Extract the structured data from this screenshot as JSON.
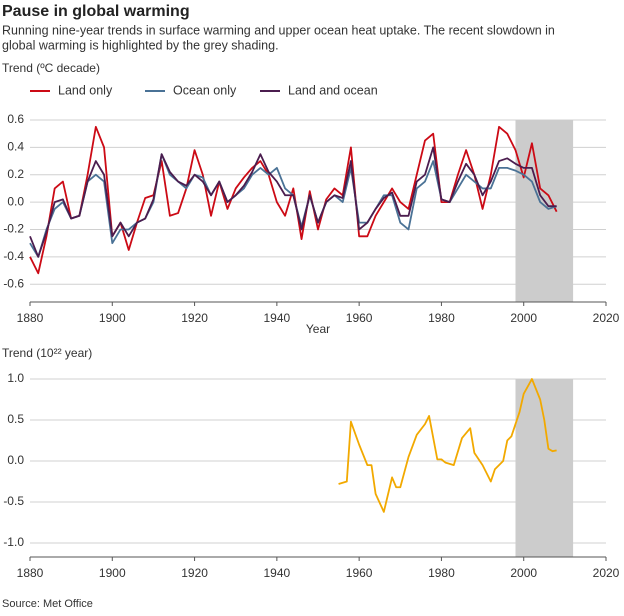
{
  "title": "Pause in global warming",
  "subtitle": [
    "Running nine-year trends in surface warming and upper ocean heat uptake. The recent slowdown in",
    "global warming is highlighted by the grey shading."
  ],
  "source": "Source: Met Office",
  "chart_data": [
    {
      "type": "line",
      "ylabel": "Trend (ºC decade)",
      "xlabel": "Year",
      "xlim": [
        1880,
        2020
      ],
      "xticks": [
        1880,
        1900,
        1920,
        1940,
        1960,
        1980,
        2000,
        2020
      ],
      "ylim": [
        -0.73,
        0.6
      ],
      "yticks": [
        0.6,
        0.4,
        0.2,
        {
          "value": 0,
          "label": "0.0"
        },
        -0.2,
        -0.4,
        -0.6
      ],
      "grid": true,
      "shading": [
        1998,
        2012
      ],
      "shading_color": "#cccccc",
      "x": [
        1880,
        1882,
        1884,
        1886,
        1888,
        1890,
        1892,
        1894,
        1896,
        1898,
        1900,
        1902,
        1904,
        1906,
        1908,
        1910,
        1912,
        1914,
        1916,
        1918,
        1920,
        1922,
        1924,
        1926,
        1928,
        1930,
        1932,
        1934,
        1936,
        1938,
        1940,
        1942,
        1944,
        1946,
        1948,
        1950,
        1952,
        1954,
        1956,
        1958,
        1960,
        1962,
        1964,
        1966,
        1968,
        1970,
        1972,
        1974,
        1976,
        1978,
        1980,
        1982,
        1984,
        1986,
        1988,
        1990,
        1992,
        1994,
        1996,
        1998,
        2000,
        2002,
        2004,
        2006,
        2008
      ],
      "series": [
        {
          "name": "Land only",
          "color": "#cc0a15",
          "values": [
            -0.4,
            -0.52,
            -0.25,
            0.1,
            0.15,
            -0.12,
            -0.1,
            0.2,
            0.55,
            0.4,
            -0.25,
            -0.15,
            -0.35,
            -0.15,
            0.03,
            0.05,
            0.3,
            -0.1,
            -0.08,
            0.1,
            0.38,
            0.2,
            -0.1,
            0.15,
            -0.05,
            0.1,
            0.18,
            0.25,
            0.3,
            0.2,
            0.0,
            -0.1,
            0.1,
            -0.27,
            0.08,
            -0.2,
            0.02,
            0.1,
            0.05,
            0.4,
            -0.25,
            -0.25,
            -0.1,
            0.0,
            0.1,
            0.0,
            -0.05,
            0.2,
            0.45,
            0.5,
            0.0,
            0.0,
            0.2,
            0.38,
            0.2,
            -0.05,
            0.2,
            0.55,
            0.5,
            0.38,
            0.18,
            0.43,
            0.1,
            0.05,
            -0.07
          ]
        },
        {
          "name": "Ocean only",
          "color": "#4a7296",
          "values": [
            -0.3,
            -0.4,
            -0.2,
            -0.05,
            0.0,
            -0.12,
            -0.1,
            0.15,
            0.2,
            0.15,
            -0.3,
            -0.2,
            -0.2,
            -0.15,
            -0.12,
            0.0,
            0.35,
            0.2,
            0.15,
            0.1,
            0.2,
            0.18,
            0.05,
            0.15,
            0.0,
            0.05,
            0.1,
            0.2,
            0.25,
            0.2,
            0.25,
            0.1,
            0.05,
            -0.18,
            0.05,
            -0.15,
            0.0,
            0.05,
            0.0,
            0.25,
            -0.15,
            -0.15,
            -0.05,
            0.05,
            0.05,
            -0.15,
            -0.2,
            0.1,
            0.15,
            0.3,
            0.02,
            0.0,
            0.1,
            0.2,
            0.15,
            0.1,
            0.1,
            0.25,
            0.25,
            0.23,
            0.2,
            0.15,
            0.0,
            -0.05,
            -0.03
          ]
        },
        {
          "name": "Land and ocean",
          "color": "#4b1d4f",
          "values": [
            -0.25,
            -0.4,
            -0.22,
            0.0,
            0.02,
            -0.12,
            -0.1,
            0.15,
            0.3,
            0.2,
            -0.25,
            -0.15,
            -0.25,
            -0.15,
            -0.12,
            0.02,
            0.35,
            0.22,
            0.15,
            0.12,
            0.2,
            0.15,
            0.05,
            0.15,
            0.0,
            0.05,
            0.12,
            0.22,
            0.35,
            0.22,
            0.15,
            0.05,
            0.05,
            -0.2,
            0.05,
            -0.15,
            0.0,
            0.05,
            0.03,
            0.3,
            -0.2,
            -0.15,
            -0.05,
            0.03,
            0.07,
            -0.1,
            -0.1,
            0.15,
            0.2,
            0.4,
            0.02,
            0.0,
            0.15,
            0.28,
            0.2,
            0.05,
            0.15,
            0.3,
            0.32,
            0.28,
            0.25,
            0.25,
            0.05,
            -0.03,
            -0.03
          ]
        }
      ]
    },
    {
      "type": "line",
      "ylabel": "Trend (10²² year)",
      "xlim": [
        1880,
        2020
      ],
      "xticks": [
        1880,
        1900,
        1920,
        1940,
        1960,
        1980,
        2000,
        2020
      ],
      "ylim": [
        -1.17,
        1.0
      ],
      "yticks": [
        {
          "value": 1,
          "label": "1.0"
        },
        0.5,
        {
          "value": 0,
          "label": "0.0"
        },
        -0.5,
        {
          "value": -1,
          "label": "-1.0"
        }
      ],
      "grid": true,
      "shading": [
        1998,
        2012
      ],
      "shading_color": "#cccccc",
      "x": [
        1955,
        1957,
        1958,
        1960,
        1962,
        1963,
        1964,
        1966,
        1968,
        1969,
        1970,
        1972,
        1974,
        1976,
        1977,
        1979,
        1980,
        1981,
        1983,
        1985,
        1987,
        1988,
        1990,
        1992,
        1993,
        1995,
        1996,
        1997,
        1999,
        2000,
        2002,
        2004,
        2005,
        2006,
        2007,
        2008
      ],
      "series": [
        {
          "color": "#f2a900",
          "values": [
            -0.28,
            -0.25,
            0.48,
            0.2,
            -0.05,
            -0.05,
            -0.4,
            -0.62,
            -0.2,
            -0.32,
            -0.32,
            0.05,
            0.32,
            0.45,
            0.55,
            0.02,
            0.02,
            -0.02,
            -0.05,
            0.28,
            0.4,
            0.1,
            -0.05,
            -0.25,
            -0.1,
            0.0,
            0.25,
            0.3,
            0.6,
            0.82,
            1.0,
            0.75,
            0.5,
            0.15,
            0.12,
            0.13
          ]
        }
      ]
    }
  ]
}
